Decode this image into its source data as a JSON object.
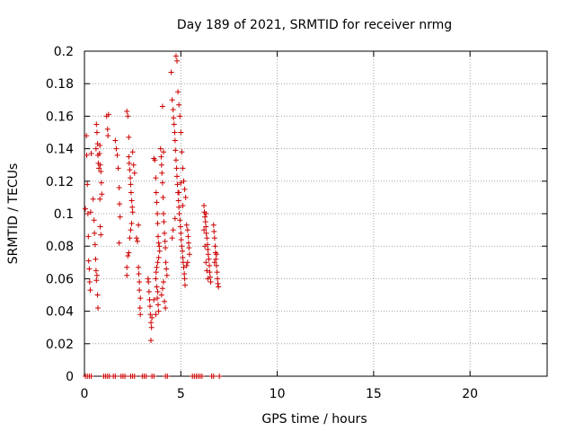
{
  "chart_data": {
    "type": "scatter",
    "title": "Day 189 of 2021, SRMTID for receiver nrmg",
    "xlabel": "GPS time / hours",
    "ylabel": "SRMTID / TECUs",
    "xlim": [
      0,
      24
    ],
    "ylim": [
      0,
      0.2
    ],
    "xticks": [
      0,
      5,
      10,
      15,
      20
    ],
    "xtick_labels": [
      "0",
      "5",
      "10",
      "15",
      "20"
    ],
    "yticks": [
      0,
      0.02,
      0.04,
      0.06,
      0.08,
      0.1,
      0.12,
      0.14,
      0.16,
      0.18,
      0.2
    ],
    "ytick_labels": [
      "0",
      "0.02",
      "0.04",
      "0.06",
      "0.08",
      "0.1",
      "0.12",
      "0.14",
      "0.16",
      "0.18",
      "0.2"
    ],
    "grid": true,
    "marker": "+",
    "series": [
      {
        "name": "SRMTID",
        "color": "#cc0000",
        "points": [
          [
            0.05,
            0.103
          ],
          [
            0.1,
            0.148
          ],
          [
            0.12,
            0.136
          ],
          [
            0.15,
            0.118
          ],
          [
            0.18,
            0.1
          ],
          [
            0.2,
            0.086
          ],
          [
            0.22,
            0.071
          ],
          [
            0.25,
            0.066
          ],
          [
            0.27,
            0.058
          ],
          [
            0.3,
            0.053
          ],
          [
            0.32,
            0.101
          ],
          [
            0.35,
            0.137
          ],
          [
            0.45,
            0.109
          ],
          [
            0.5,
            0.096
          ],
          [
            0.52,
            0.088
          ],
          [
            0.55,
            0.081
          ],
          [
            0.58,
            0.072
          ],
          [
            0.6,
            0.065
          ],
          [
            0.62,
            0.059
          ],
          [
            0.65,
            0.062
          ],
          [
            0.68,
            0.05
          ],
          [
            0.7,
            0.042
          ],
          [
            0.6,
            0.14
          ],
          [
            0.62,
            0.155
          ],
          [
            0.65,
            0.15
          ],
          [
            0.68,
            0.143
          ],
          [
            0.7,
            0.136
          ],
          [
            0.72,
            0.131
          ],
          [
            0.75,
            0.128
          ],
          [
            0.78,
            0.137
          ],
          [
            0.8,
            0.142
          ],
          [
            0.82,
            0.13
          ],
          [
            0.85,
            0.126
          ],
          [
            0.88,
            0.119
          ],
          [
            0.9,
            0.112
          ],
          [
            0.8,
            0.109
          ],
          [
            0.82,
            0.092
          ],
          [
            0.85,
            0.087
          ],
          [
            1.15,
            0.16
          ],
          [
            1.2,
            0.152
          ],
          [
            1.22,
            0.148
          ],
          [
            1.25,
            0.161
          ],
          [
            1.6,
            0.145
          ],
          [
            1.65,
            0.14
          ],
          [
            1.7,
            0.136
          ],
          [
            1.75,
            0.128
          ],
          [
            1.8,
            0.116
          ],
          [
            1.82,
            0.106
          ],
          [
            1.85,
            0.098
          ],
          [
            1.8,
            0.082
          ],
          [
            2.2,
            0.163
          ],
          [
            2.25,
            0.16
          ],
          [
            2.3,
            0.147
          ],
          [
            2.3,
            0.135
          ],
          [
            2.32,
            0.131
          ],
          [
            2.35,
            0.127
          ],
          [
            2.38,
            0.122
          ],
          [
            2.4,
            0.118
          ],
          [
            2.42,
            0.113
          ],
          [
            2.45,
            0.108
          ],
          [
            2.48,
            0.104
          ],
          [
            2.5,
            0.101
          ],
          [
            2.45,
            0.094
          ],
          [
            2.4,
            0.09
          ],
          [
            2.35,
            0.085
          ],
          [
            2.3,
            0.076
          ],
          [
            2.25,
            0.074
          ],
          [
            2.2,
            0.067
          ],
          [
            2.2,
            0.062
          ],
          [
            2.5,
            0.138
          ],
          [
            2.55,
            0.13
          ],
          [
            2.6,
            0.125
          ],
          [
            2.7,
            0.085
          ],
          [
            2.75,
            0.083
          ],
          [
            2.8,
            0.067
          ],
          [
            2.82,
            0.063
          ],
          [
            2.85,
            0.058
          ],
          [
            2.85,
            0.053
          ],
          [
            2.9,
            0.048
          ],
          [
            2.88,
            0.042
          ],
          [
            2.9,
            0.038
          ],
          [
            2.8,
            0.093
          ],
          [
            3.3,
            0.06
          ],
          [
            3.32,
            0.058
          ],
          [
            3.35,
            0.052
          ],
          [
            3.38,
            0.047
          ],
          [
            3.4,
            0.043
          ],
          [
            3.42,
            0.038
          ],
          [
            3.45,
            0.033
          ],
          [
            3.48,
            0.03
          ],
          [
            3.45,
            0.022
          ],
          [
            3.5,
            0.036
          ],
          [
            3.6,
            0.134
          ],
          [
            3.65,
            0.133
          ],
          [
            3.7,
            0.122
          ],
          [
            3.72,
            0.113
          ],
          [
            3.75,
            0.107
          ],
          [
            3.78,
            0.1
          ],
          [
            3.8,
            0.094
          ],
          [
            3.82,
            0.086
          ],
          [
            3.85,
            0.082
          ],
          [
            3.88,
            0.08
          ],
          [
            3.9,
            0.077
          ],
          [
            3.85,
            0.073
          ],
          [
            3.8,
            0.07
          ],
          [
            3.75,
            0.067
          ],
          [
            3.72,
            0.064
          ],
          [
            3.7,
            0.06
          ],
          [
            3.75,
            0.055
          ],
          [
            3.8,
            0.052
          ],
          [
            3.78,
            0.048
          ],
          [
            3.82,
            0.044
          ],
          [
            3.85,
            0.04
          ],
          [
            3.7,
            0.038
          ],
          [
            3.6,
            0.047
          ],
          [
            3.95,
            0.14
          ],
          [
            3.98,
            0.135
          ],
          [
            4.0,
            0.13
          ],
          [
            4.02,
            0.125
          ],
          [
            4.05,
            0.119
          ],
          [
            4.08,
            0.11
          ],
          [
            4.1,
            0.1
          ],
          [
            4.12,
            0.095
          ],
          [
            4.15,
            0.088
          ],
          [
            4.18,
            0.083
          ],
          [
            4.2,
            0.079
          ],
          [
            4.22,
            0.07
          ],
          [
            4.25,
            0.066
          ],
          [
            4.28,
            0.062
          ],
          [
            4.1,
            0.058
          ],
          [
            4.05,
            0.054
          ],
          [
            4.0,
            0.05
          ],
          [
            4.15,
            0.046
          ],
          [
            4.2,
            0.042
          ],
          [
            4.05,
            0.166
          ],
          [
            4.1,
            0.138
          ],
          [
            4.5,
            0.187
          ],
          [
            4.55,
            0.17
          ],
          [
            4.6,
            0.164
          ],
          [
            4.62,
            0.159
          ],
          [
            4.65,
            0.155
          ],
          [
            4.68,
            0.15
          ],
          [
            4.7,
            0.145
          ],
          [
            4.72,
            0.139
          ],
          [
            4.75,
            0.133
          ],
          [
            4.78,
            0.128
          ],
          [
            4.8,
            0.123
          ],
          [
            4.82,
            0.118
          ],
          [
            4.85,
            0.113
          ],
          [
            4.88,
            0.108
          ],
          [
            4.9,
            0.104
          ],
          [
            4.92,
            0.1
          ],
          [
            4.95,
            0.096
          ],
          [
            4.98,
            0.092
          ],
          [
            5.0,
            0.088
          ],
          [
            5.02,
            0.084
          ],
          [
            5.05,
            0.08
          ],
          [
            5.08,
            0.077
          ],
          [
            5.1,
            0.073
          ],
          [
            5.12,
            0.07
          ],
          [
            5.15,
            0.067
          ],
          [
            5.18,
            0.063
          ],
          [
            5.2,
            0.06
          ],
          [
            5.22,
            0.056
          ],
          [
            4.75,
            0.197
          ],
          [
            4.8,
            0.194
          ],
          [
            4.85,
            0.175
          ],
          [
            4.9,
            0.167
          ],
          [
            4.95,
            0.16
          ],
          [
            5.0,
            0.15
          ],
          [
            5.05,
            0.138
          ],
          [
            5.1,
            0.128
          ],
          [
            5.15,
            0.12
          ],
          [
            5.2,
            0.115
          ],
          [
            5.25,
            0.11
          ],
          [
            5.1,
            0.105
          ],
          [
            5.0,
            0.119
          ],
          [
            4.9,
            0.113
          ],
          [
            4.7,
            0.097
          ],
          [
            4.6,
            0.09
          ],
          [
            4.55,
            0.085
          ],
          [
            5.3,
            0.093
          ],
          [
            5.35,
            0.09
          ],
          [
            5.38,
            0.086
          ],
          [
            5.4,
            0.082
          ],
          [
            5.42,
            0.079
          ],
          [
            5.45,
            0.075
          ],
          [
            5.35,
            0.07
          ],
          [
            5.3,
            0.068
          ],
          [
            6.2,
            0.105
          ],
          [
            6.22,
            0.101
          ],
          [
            6.25,
            0.098
          ],
          [
            6.28,
            0.095
          ],
          [
            6.3,
            0.092
          ],
          [
            6.32,
            0.088
          ],
          [
            6.35,
            0.085
          ],
          [
            6.38,
            0.081
          ],
          [
            6.4,
            0.078
          ],
          [
            6.42,
            0.075
          ],
          [
            6.45,
            0.072
          ],
          [
            6.48,
            0.068
          ],
          [
            6.5,
            0.064
          ],
          [
            6.52,
            0.061
          ],
          [
            6.55,
            0.058
          ],
          [
            6.2,
            0.09
          ],
          [
            6.25,
            0.08
          ],
          [
            6.3,
            0.07
          ],
          [
            6.35,
            0.065
          ],
          [
            6.4,
            0.06
          ],
          [
            6.3,
            0.1
          ],
          [
            6.7,
            0.093
          ],
          [
            6.72,
            0.089
          ],
          [
            6.75,
            0.085
          ],
          [
            6.78,
            0.08
          ],
          [
            6.8,
            0.076
          ],
          [
            6.82,
            0.072
          ],
          [
            6.85,
            0.068
          ],
          [
            6.88,
            0.064
          ],
          [
            6.9,
            0.06
          ],
          [
            6.92,
            0.057
          ],
          [
            6.95,
            0.055
          ],
          [
            6.85,
            0.075
          ],
          [
            6.75,
            0.07
          ],
          [
            0.05,
            0
          ],
          [
            0.15,
            0
          ],
          [
            0.25,
            0
          ],
          [
            0.35,
            0
          ],
          [
            1.0,
            0
          ],
          [
            1.1,
            0
          ],
          [
            1.2,
            0
          ],
          [
            1.3,
            0
          ],
          [
            1.5,
            0
          ],
          [
            1.6,
            0
          ],
          [
            1.9,
            0
          ],
          [
            2.0,
            0
          ],
          [
            2.1,
            0
          ],
          [
            2.4,
            0
          ],
          [
            2.5,
            0
          ],
          [
            2.6,
            0
          ],
          [
            3.0,
            0
          ],
          [
            3.1,
            0
          ],
          [
            3.2,
            0
          ],
          [
            3.5,
            0
          ],
          [
            3.6,
            0
          ],
          [
            4.2,
            0
          ],
          [
            4.3,
            0
          ],
          [
            5.6,
            0
          ],
          [
            5.7,
            0
          ],
          [
            5.8,
            0
          ],
          [
            5.9,
            0
          ],
          [
            6.0,
            0
          ],
          [
            6.1,
            0
          ],
          [
            6.6,
            0
          ],
          [
            6.7,
            0
          ],
          [
            7.0,
            0
          ]
        ]
      }
    ]
  }
}
